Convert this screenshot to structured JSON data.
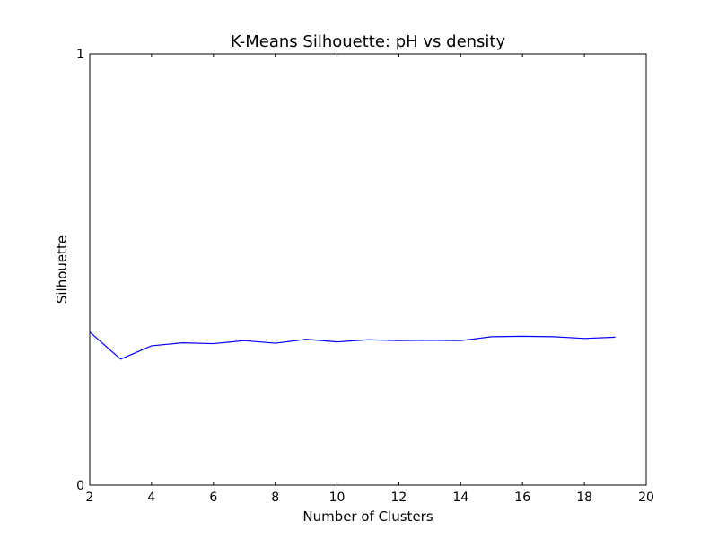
{
  "chart_data": {
    "type": "line",
    "title": "K-Means Silhouette: pH vs density",
    "xlabel": "Number of Clusters",
    "ylabel": "Silhouette",
    "xlim": [
      2,
      20
    ],
    "ylim": [
      0,
      1
    ],
    "xticks": [
      2,
      4,
      6,
      8,
      10,
      12,
      14,
      16,
      18,
      20
    ],
    "yticks": [
      0,
      1
    ],
    "grid": false,
    "series": [
      {
        "color": "#0000ff",
        "x": [
          2,
          3,
          4,
          5,
          6,
          7,
          8,
          9,
          10,
          11,
          12,
          13,
          14,
          15,
          16,
          17,
          18,
          19
        ],
        "y": [
          0.355,
          0.292,
          0.323,
          0.33,
          0.328,
          0.335,
          0.329,
          0.338,
          0.332,
          0.337,
          0.335,
          0.336,
          0.335,
          0.344,
          0.345,
          0.344,
          0.34,
          0.343
        ]
      }
    ]
  }
}
